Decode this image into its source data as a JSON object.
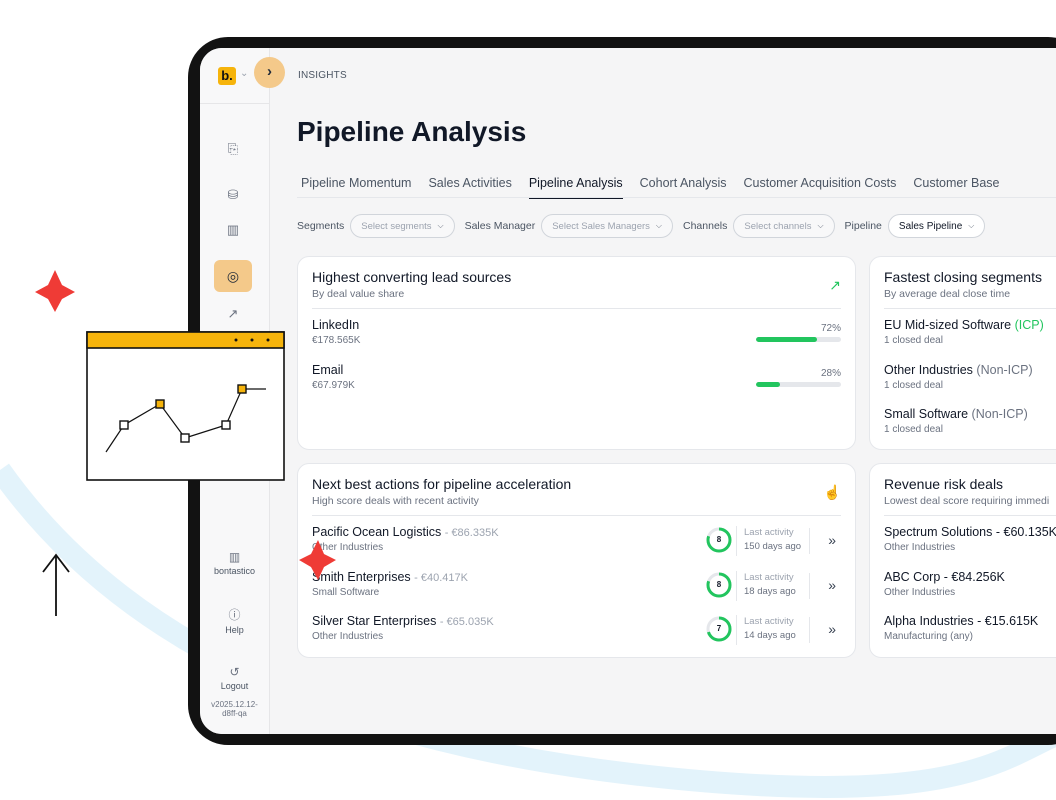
{
  "app": {
    "logo": "b.",
    "breadcrumb": "INSIGHTS",
    "page_title": "Pipeline Analysis"
  },
  "tabs": [
    {
      "label": "Pipeline Momentum"
    },
    {
      "label": "Sales Activities"
    },
    {
      "label": "Pipeline Analysis",
      "active": true
    },
    {
      "label": "Cohort Analysis"
    },
    {
      "label": "Customer Acquisition Costs"
    },
    {
      "label": "Customer Base"
    }
  ],
  "filters": {
    "segments_label": "Segments",
    "segments_placeholder": "Select segments",
    "manager_label": "Sales Manager",
    "manager_placeholder": "Select Sales Managers",
    "channels_label": "Channels",
    "channels_placeholder": "Select channels",
    "pipeline_label": "Pipeline",
    "pipeline_value": "Sales Pipeline"
  },
  "sidebar": {
    "icons": [
      "inbox-icon",
      "database-icon",
      "building-icon",
      "gauge-icon",
      "trend-icon"
    ],
    "workspace": "bontastico",
    "help": "Help",
    "logout": "Logout",
    "version_line1": "v2025.12.12-",
    "version_line2": "d8ff-qa"
  },
  "lead_sources": {
    "title": "Highest converting lead sources",
    "subtitle": "By deal value share",
    "items": [
      {
        "name": "LinkedIn",
        "value": "€178.565K",
        "pct_label": "72%",
        "share": 0.72
      },
      {
        "name": "Email",
        "value": "€67.979K",
        "pct_label": "28%",
        "share": 0.28
      }
    ]
  },
  "closing_segments": {
    "title": "Fastest closing segments",
    "subtitle": "By average deal close time",
    "items": [
      {
        "name": "EU Mid-sized Software",
        "tag": "(ICP)",
        "sub": "1 closed deal"
      },
      {
        "name": "Other Industries",
        "tag": "(Non-ICP)",
        "sub": "1 closed deal"
      },
      {
        "name": "Small Software",
        "tag": "(Non-ICP)",
        "sub": "1 closed deal"
      }
    ]
  },
  "next_actions": {
    "title": "Next best actions for pipeline acceleration",
    "subtitle": "High score deals with recent activity",
    "activity_label": "Last activity",
    "items": [
      {
        "name": "Pacific Ocean Logistics",
        "value": "- €86.335K",
        "industry": "Other Industries",
        "score": "8",
        "score_fraction": 0.8,
        "last_activity": "150 days ago"
      },
      {
        "name": "Smith Enterprises",
        "value": "- €40.417K",
        "industry": "Small Software",
        "score": "8",
        "score_fraction": 0.8,
        "last_activity": "18 days ago"
      },
      {
        "name": "Silver Star Enterprises",
        "value": "- €65.035K",
        "industry": "Other Industries",
        "score": "7",
        "score_fraction": 0.7,
        "last_activity": "14 days ago"
      }
    ]
  },
  "risk_deals": {
    "title": "Revenue risk deals",
    "subtitle": "Lowest deal score requiring immedi",
    "items": [
      {
        "name": "Spectrum Solutions - €60.135K",
        "industry": "Other Industries"
      },
      {
        "name": "ABC Corp - €84.256K",
        "industry": "Other Industries"
      },
      {
        "name": "Alpha Industries - €15.615K",
        "industry": "Manufacturing (any)"
      }
    ]
  },
  "colors": {
    "accent": "#22c55e",
    "brand": "#f6b40c",
    "highlight": "#f4c98a",
    "decor_red": "#ef3b36"
  }
}
